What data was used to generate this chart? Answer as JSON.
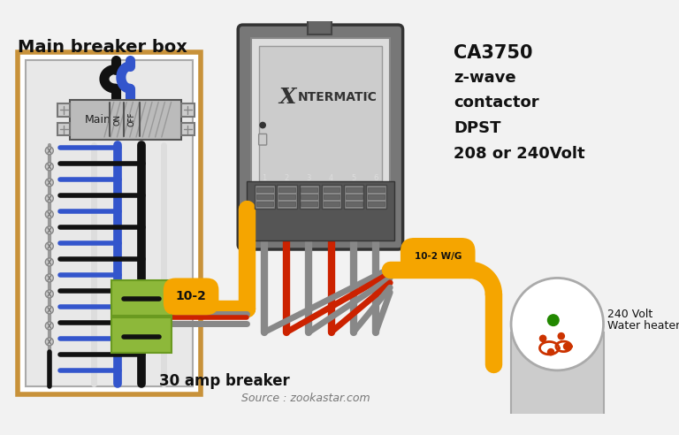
{
  "bg_color": "#f2f2f2",
  "title": "Main breaker box",
  "source_text": "Source : zookastar.com",
  "ca_text_lines": [
    "CA3750",
    "z-wave",
    "contactor",
    "DPST",
    "208 or 240Volt"
  ],
  "label_30amp": "30 amp breaker",
  "label_10_2": "10-2",
  "label_10_2wg": "10-2 W/G",
  "label_240v_line1": "240 Volt",
  "label_240v_line2": "Water heater",
  "intermatic_text": "NTERMATIC",
  "panel_box_color": "#c8923a",
  "panel_inner_bg": "#e8e8e8",
  "panel_border_color": "#888888",
  "breaker_green_color": "#8db83a",
  "breaker_green_dark": "#6a9a20",
  "wire_orange_color": "#f5a500",
  "wire_red_color": "#cc2200",
  "wire_black_color": "#111111",
  "wire_blue_color": "#3355cc",
  "wire_gray_color": "#888888",
  "wire_tan_color": "#c8a878",
  "contactor_dark": "#444444",
  "contactor_mid": "#666666",
  "contactor_light": "#aaaaaa",
  "text_color": "#111111",
  "main_breaker_fill": "#cccccc",
  "white": "#ffffff"
}
